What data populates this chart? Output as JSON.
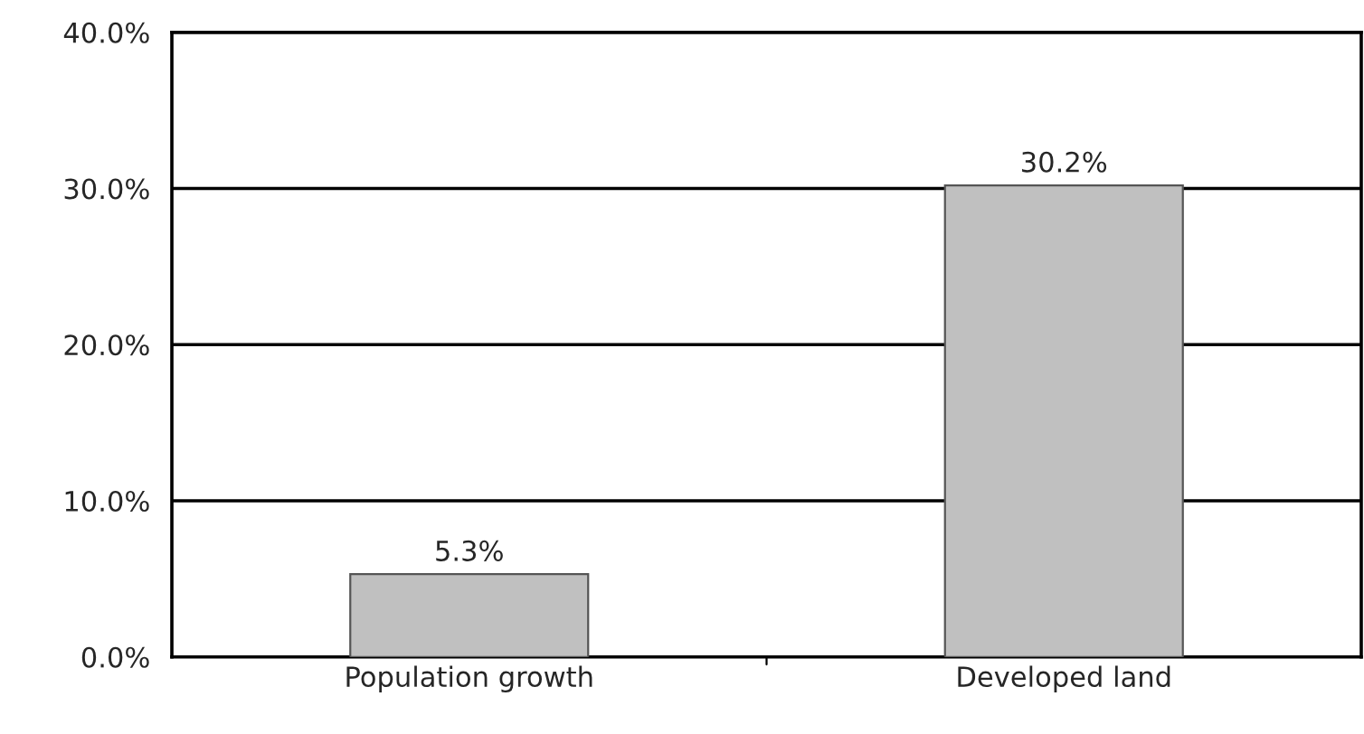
{
  "chart_data": {
    "type": "bar",
    "categories": [
      "Population growth",
      "Developed land"
    ],
    "values": [
      5.3,
      30.2
    ],
    "color": "#c0c0c0",
    "value_labels": [
      "5.3%",
      "30.2%"
    ],
    "ylim": [
      0,
      40
    ],
    "yticks": [
      {
        "value": 0,
        "label": "0.0%"
      },
      {
        "value": 10,
        "label": "10.0%"
      },
      {
        "value": 20,
        "label": "20.0%"
      },
      {
        "value": 30,
        "label": "30.0%"
      },
      {
        "value": 40,
        "label": "40.0%"
      }
    ],
    "grid": "y"
  }
}
